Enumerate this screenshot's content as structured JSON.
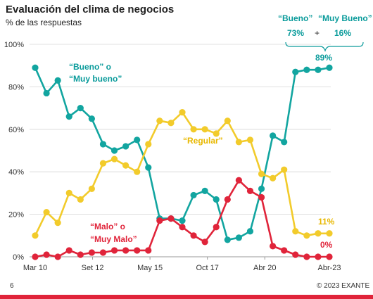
{
  "chart_data": {
    "type": "line",
    "title": "Evaluación del clima de negocios",
    "subtitle": "% de las respuestas",
    "ylim": [
      0,
      100
    ],
    "yticks": [
      "0%",
      "20%",
      "40%",
      "60%",
      "80%",
      "100%"
    ],
    "ytick_values": [
      0,
      20,
      40,
      60,
      80,
      100
    ],
    "x_tick_labels": [
      "Mar 10",
      "Set 12",
      "May 15",
      "Oct 17",
      "Abr 20",
      "Abr-23"
    ],
    "x_tick_index": [
      0,
      8,
      16,
      24,
      32,
      41
    ],
    "grid": true,
    "series": [
      {
        "key": "bueno",
        "color": "#12a5a0",
        "values": [
          89,
          77,
          83,
          66,
          70,
          65,
          53,
          50,
          52,
          55,
          42,
          18,
          18,
          17,
          29,
          31,
          27,
          8,
          9,
          12,
          32,
          57,
          54,
          87,
          88,
          88,
          89
        ]
      },
      {
        "key": "regular",
        "color": "#f2cb2b",
        "values": [
          10,
          21,
          16,
          30,
          27,
          32,
          44,
          46,
          43,
          40,
          53,
          64,
          63,
          68,
          60,
          60,
          58,
          64,
          54,
          55,
          39,
          37,
          41,
          12,
          10,
          11,
          11
        ]
      },
      {
        "key": "malo",
        "color": "#e0243a",
        "values": [
          0,
          1,
          0,
          3,
          1,
          2,
          2,
          3,
          3,
          3,
          3,
          17,
          18,
          14,
          10,
          7,
          14,
          27,
          36,
          31,
          28,
          5,
          3,
          1,
          0,
          0,
          0
        ]
      }
    ],
    "annotations": {
      "bueno_line1": "“Bueno” o",
      "bueno_line2": "“Muy bueno”",
      "regular": "“Regular”",
      "malo_line1": "“Malo” o",
      "malo_line2": "“Muy Malo”",
      "end_bueno": "89%",
      "end_regular": "11%",
      "end_malo": "0%",
      "breakdown_bueno_label": "“Bueno”",
      "breakdown_muybueno_label": "“Muy Bueno”",
      "breakdown_bueno_value": "73%",
      "breakdown_plus": "+",
      "breakdown_muybueno_value": "16%"
    }
  },
  "footer": {
    "page_number": "6",
    "copyright": "© 2023 EXANTE"
  },
  "colors": {
    "teal_text": "#0a9b9b",
    "yellow_text": "#e8b800",
    "red": "#e0243a"
  }
}
